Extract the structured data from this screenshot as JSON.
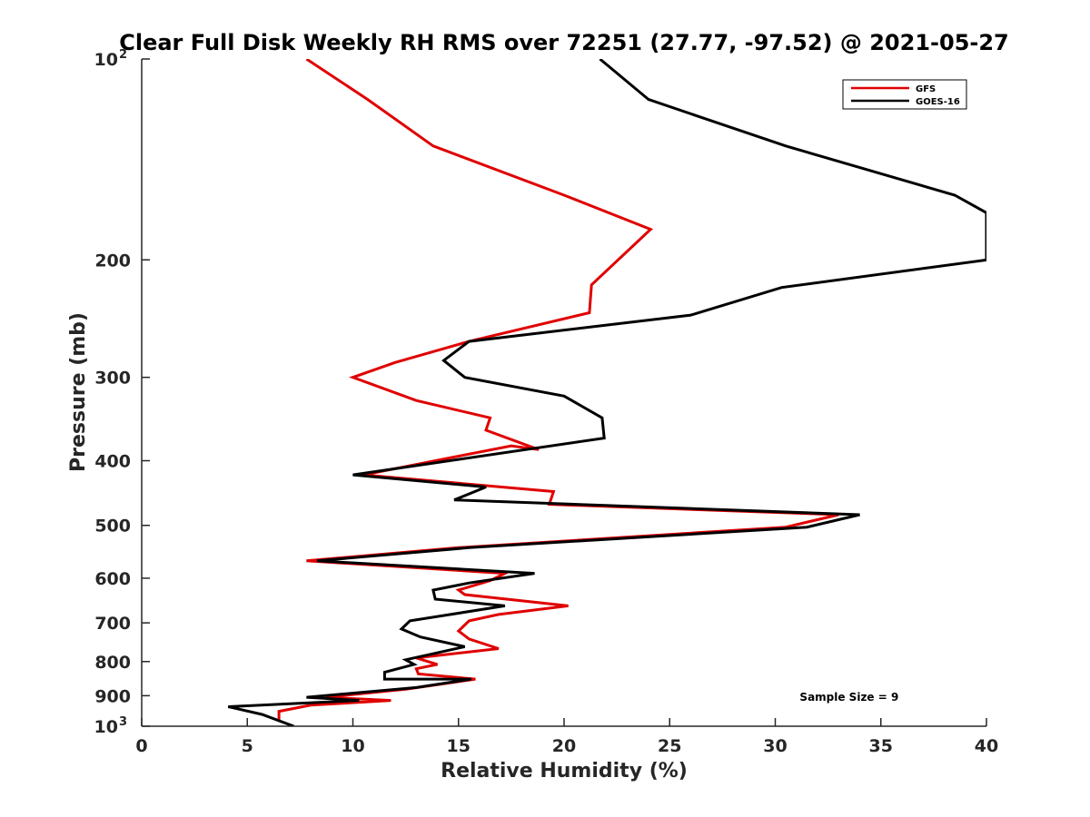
{
  "chart_data": {
    "type": "line",
    "title": "Clear Full Disk Weekly RH RMS over 72251 (27.77, -97.52) @ 2021-05-27",
    "xlabel": "Relative Humidity (%)",
    "ylabel": "Pressure (mb)",
    "xlim": [
      0,
      40
    ],
    "ylim": [
      100,
      1000
    ],
    "yscale": "log",
    "y_reversed": true,
    "grid": false,
    "legend_position": "top-right",
    "x_ticks": [
      "0",
      "5",
      "10",
      "15",
      "20",
      "25",
      "30",
      "35",
      "40"
    ],
    "y_ticks": [
      {
        "value": 100,
        "base": "10",
        "exp": "2"
      },
      {
        "value": 200,
        "label": "200"
      },
      {
        "value": 300,
        "label": "300"
      },
      {
        "value": 400,
        "label": "400"
      },
      {
        "value": 500,
        "label": "500"
      },
      {
        "value": 600,
        "label": "600"
      },
      {
        "value": 700,
        "label": "700"
      },
      {
        "value": 800,
        "label": "800"
      },
      {
        "value": 900,
        "label": "900"
      },
      {
        "value": 1000,
        "base": "10",
        "exp": "3"
      }
    ],
    "series": [
      {
        "name": "GFS",
        "color": "#e00000",
        "points": [
          [
            7.8,
            100
          ],
          [
            10.7,
            115
          ],
          [
            13.8,
            135
          ],
          [
            20,
            160
          ],
          [
            24.1,
            180
          ],
          [
            21.3,
            218
          ],
          [
            21.2,
            240
          ],
          [
            15.5,
            265
          ],
          [
            12,
            285
          ],
          [
            10,
            300
          ],
          [
            13,
            325
          ],
          [
            16.5,
            345
          ],
          [
            16.3,
            360
          ],
          [
            18.8,
            385
          ],
          [
            17.5,
            380
          ],
          [
            10.5,
            420
          ],
          [
            19.5,
            445
          ],
          [
            19.3,
            465
          ],
          [
            33,
            482
          ],
          [
            30.5,
            503
          ],
          [
            15,
            540
          ],
          [
            7.8,
            565
          ],
          [
            17.2,
            590
          ],
          [
            16.5,
            605
          ],
          [
            15,
            625
          ],
          [
            15.3,
            635
          ],
          [
            20.2,
            660
          ],
          [
            16.9,
            680
          ],
          [
            15.5,
            695
          ],
          [
            15,
            720
          ],
          [
            15.5,
            740
          ],
          [
            16.9,
            765
          ],
          [
            13,
            790
          ],
          [
            14,
            808
          ],
          [
            13,
            820
          ],
          [
            13.1,
            835
          ],
          [
            15.8,
            850
          ],
          [
            12.5,
            880
          ],
          [
            8.7,
            905
          ],
          [
            11.8,
            915
          ],
          [
            8,
            930
          ],
          [
            6.5,
            950
          ],
          [
            6.5,
            980
          ]
        ]
      },
      {
        "name": "GOES-16",
        "color": "#000000",
        "points": [
          [
            21.7,
            100
          ],
          [
            24,
            115
          ],
          [
            30.5,
            135
          ],
          [
            38.5,
            160
          ],
          [
            40,
            170
          ],
          [
            40,
            200
          ],
          [
            30.3,
            220
          ],
          [
            26,
            242
          ],
          [
            15.5,
            265
          ],
          [
            14.3,
            283
          ],
          [
            15.3,
            300
          ],
          [
            20,
            320
          ],
          [
            21.8,
            345
          ],
          [
            21.9,
            370
          ],
          [
            10,
            420
          ],
          [
            16.3,
            438
          ],
          [
            14.8,
            458
          ],
          [
            34,
            482
          ],
          [
            31.5,
            503
          ],
          [
            15.5,
            540
          ],
          [
            8.3,
            565
          ],
          [
            18.6,
            590
          ],
          [
            15.5,
            610
          ],
          [
            13.8,
            625
          ],
          [
            13.9,
            645
          ],
          [
            17.2,
            660
          ],
          [
            12.7,
            695
          ],
          [
            12.3,
            715
          ],
          [
            13.2,
            735
          ],
          [
            15.3,
            760
          ],
          [
            12.5,
            795
          ],
          [
            12.9,
            808
          ],
          [
            11.5,
            830
          ],
          [
            11.5,
            850
          ],
          [
            15.6,
            850
          ],
          [
            13,
            875
          ],
          [
            7.8,
            905
          ],
          [
            10.3,
            915
          ],
          [
            4.1,
            935
          ],
          [
            5.7,
            960
          ],
          [
            7.2,
            1000
          ]
        ]
      }
    ],
    "annotations": [
      {
        "text": "Sample Size = 9",
        "x": 33.5,
        "y": 905
      }
    ]
  }
}
